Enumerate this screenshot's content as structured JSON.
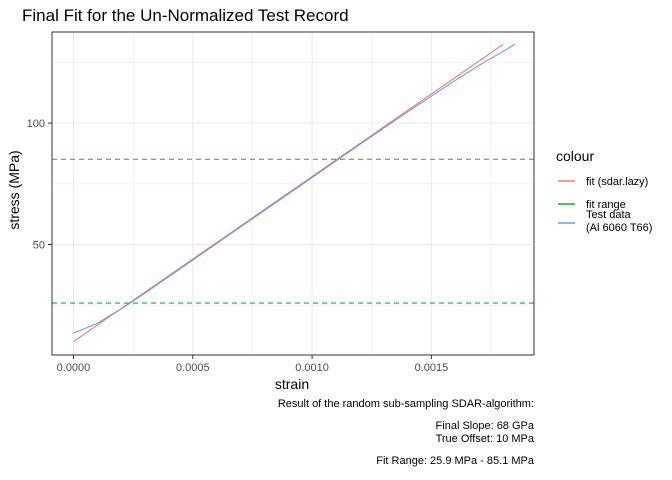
{
  "chart_data": {
    "type": "line",
    "title": "Final Fit for the Un-Normalized Test Record",
    "xlabel": "strain",
    "ylabel": "stress (MPa)",
    "xlim": [
      -9e-05,
      0.00193
    ],
    "ylim": [
      4.5,
      137.5
    ],
    "x_ticks": [
      0.0,
      0.0005,
      0.001,
      0.0015
    ],
    "x_tick_labels": [
      "0.0000",
      "0.0005",
      "0.0010",
      "0.0015"
    ],
    "y_ticks": [
      50,
      100
    ],
    "y_tick_labels": [
      "50",
      "100"
    ],
    "grid": true,
    "legend": {
      "title": "colour",
      "placement": "right",
      "entries": [
        {
          "label": "fit (sdar.lazy)",
          "color": "#F8766D"
        },
        {
          "label": "fit range",
          "color": "#00BA38"
        },
        {
          "label": "Test data\n(Al 6060 T66)",
          "color": "#619CFF"
        }
      ]
    },
    "series": [
      {
        "name": "fit (sdar.lazy)",
        "color": "#F8766D",
        "style": "solid",
        "x": [
          0.0,
          0.0018
        ],
        "y": [
          10.0,
          132.4
        ]
      },
      {
        "name": "Test data\n(Al 6060 T66)",
        "color": "#619CFF",
        "style": "solid",
        "x": [
          0.0,
          0.0001,
          0.0002,
          0.0003,
          0.0005,
          0.0008,
          0.001,
          0.0012,
          0.0014,
          0.0016,
          0.0017,
          0.00185
        ],
        "y": [
          13.5,
          17.5,
          23.5,
          30.0,
          43.6,
          64.0,
          77.6,
          91.2,
          104.6,
          117.6,
          123.8,
          132.4
        ]
      },
      {
        "name": "fit range",
        "color": "#00BA38",
        "style": "dashed",
        "hline": 25.9
      },
      {
        "name": "fit range",
        "color": "#00BA38",
        "style": "dashed",
        "hline": 85.1
      }
    ],
    "caption": [
      "Result of the random sub-sampling SDAR-algorithm:",
      "",
      "Final Slope: 68 GPa",
      "True Offset: 10 MPa",
      "",
      "Fit Range: 25.9 MPa - 85.1 MPa"
    ]
  }
}
